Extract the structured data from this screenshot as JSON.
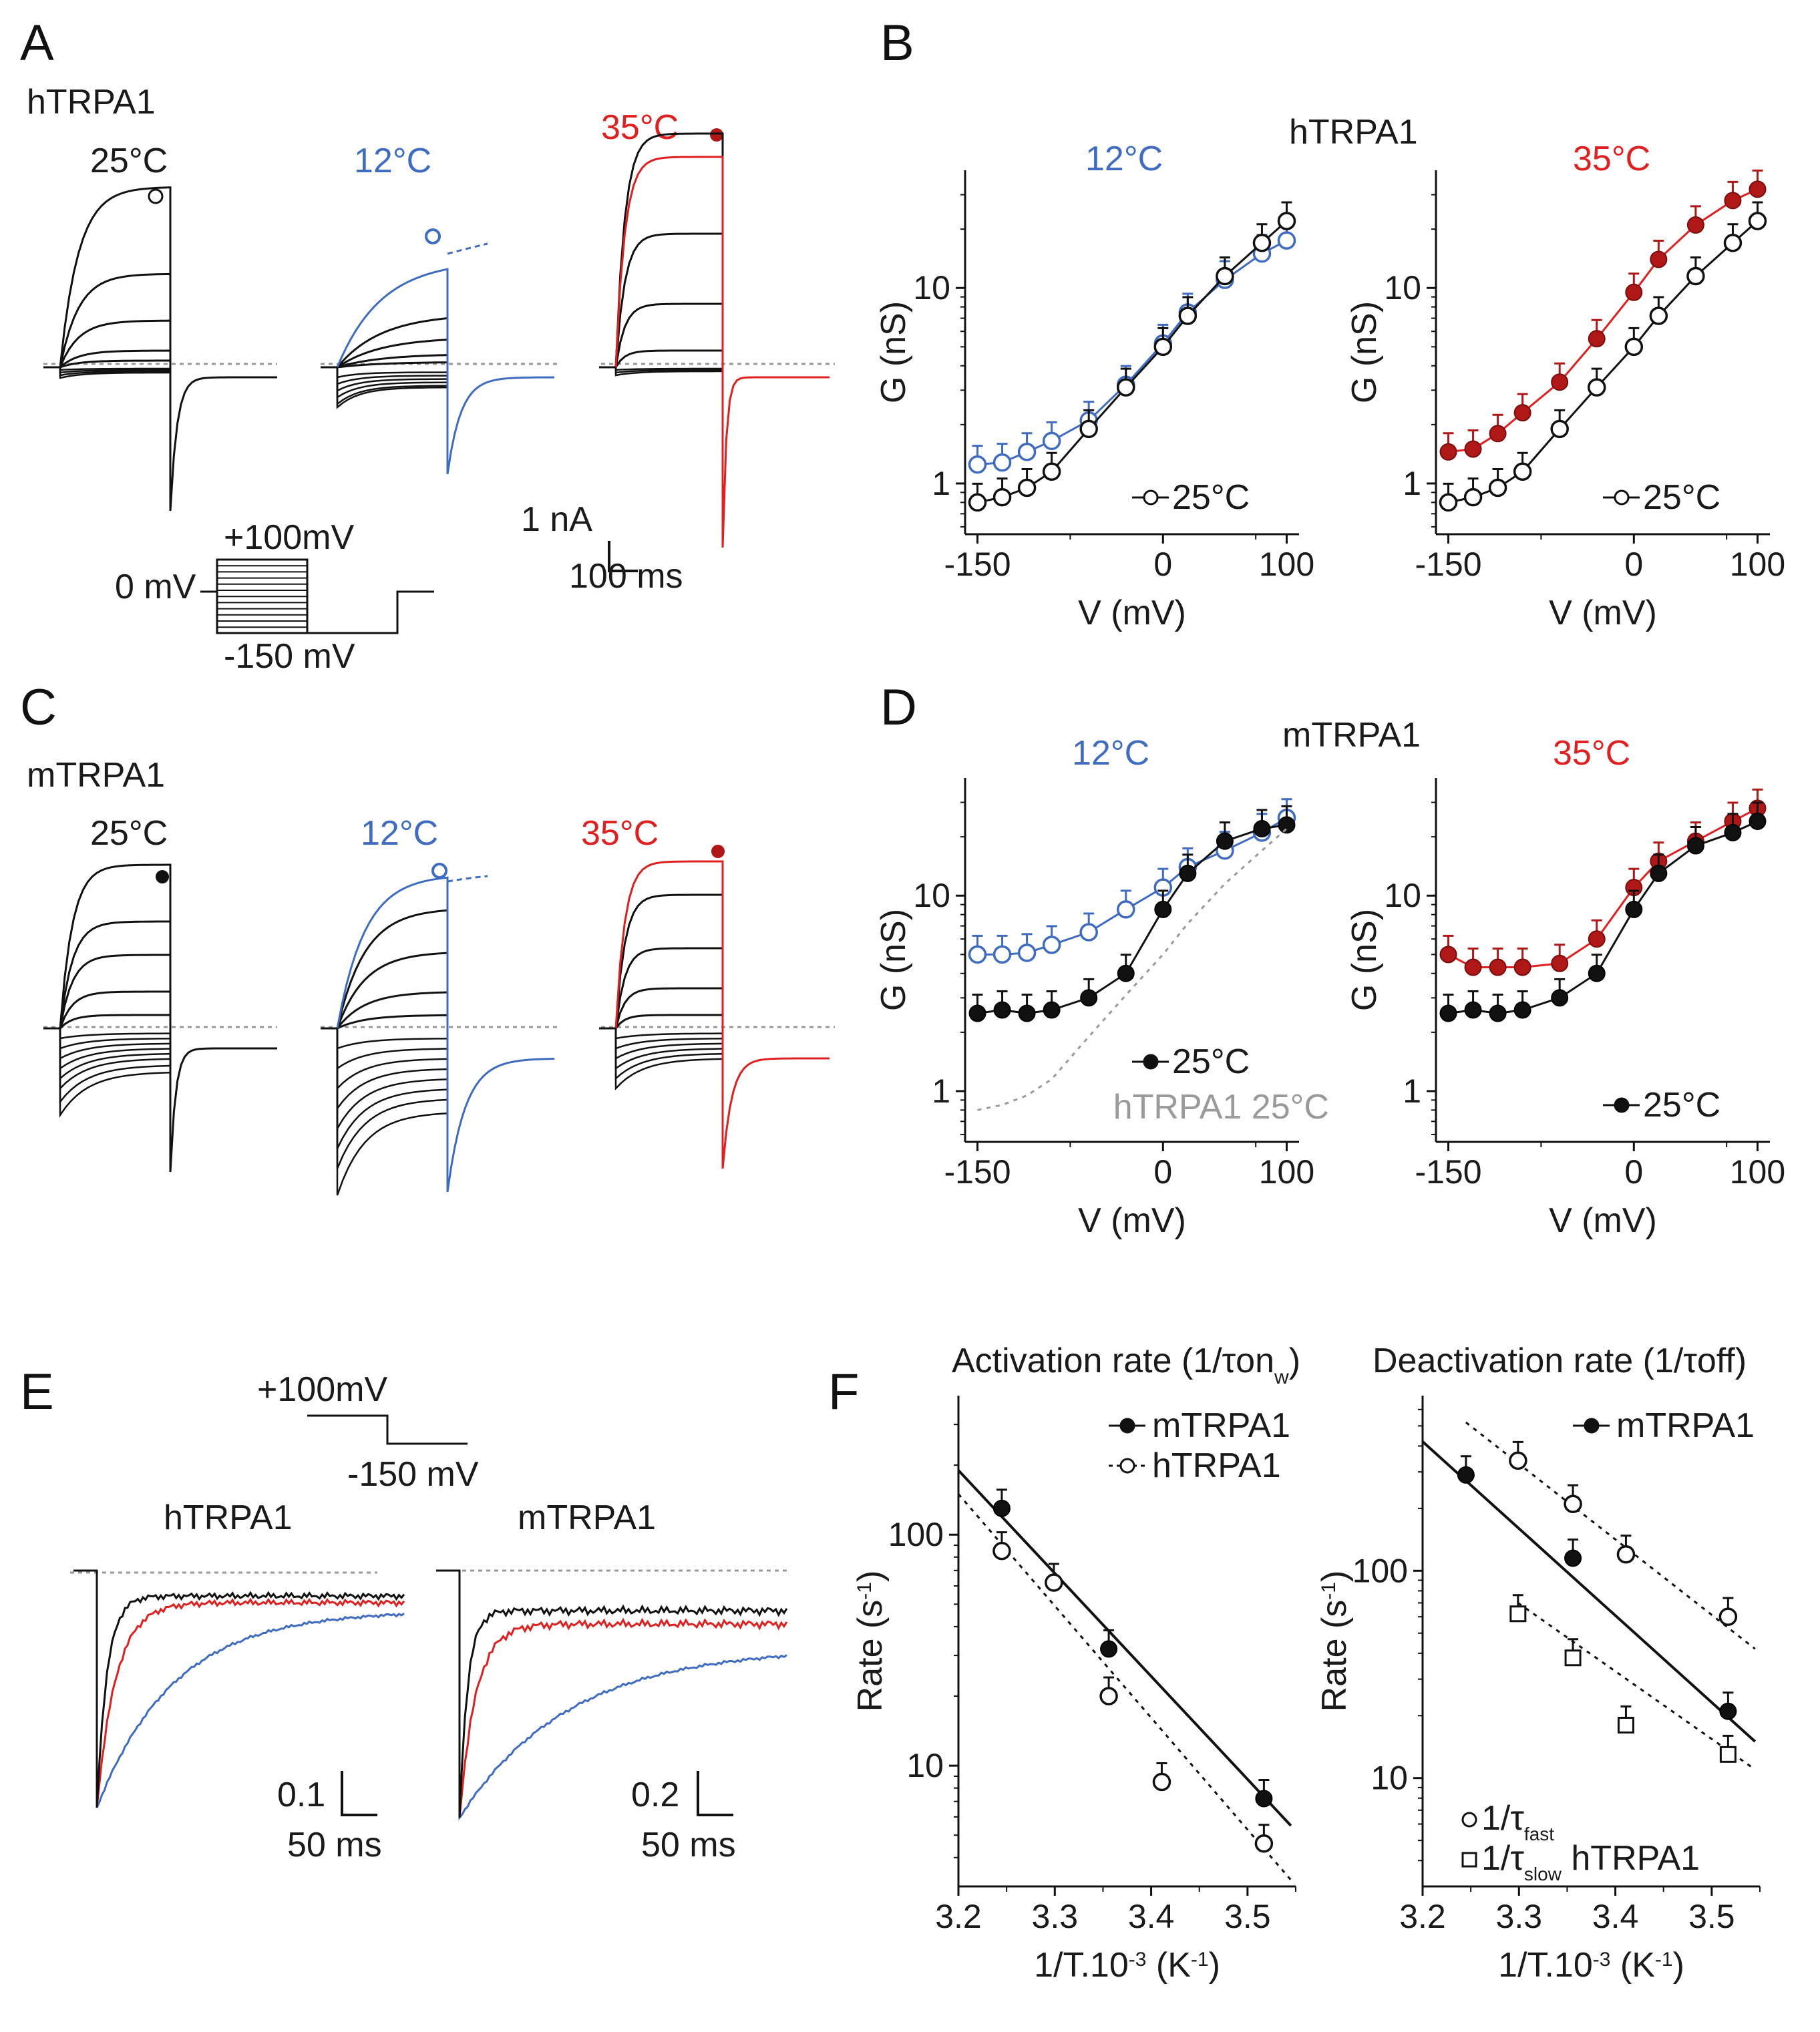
{
  "colors": {
    "black": "#111111",
    "blue": "#3f6cc0",
    "red": "#e02020",
    "darkred": "#b01818",
    "gray": "#9a9a9a",
    "lightgray": "#b8b8b8"
  },
  "panel_letters": [
    "A",
    "B",
    "C",
    "D",
    "E",
    "F"
  ],
  "A": {
    "species": "hTRPA1",
    "conditions": [
      {
        "temp": "25°C",
        "color": "black",
        "marker": "open"
      },
      {
        "temp": "12°C",
        "color": "blue",
        "marker": "open-blue"
      },
      {
        "temp": "35°C",
        "color": "red",
        "marker": "filled-red"
      }
    ],
    "protocol": {
      "top": "+100mV",
      "hold": "0 mV",
      "bottom": "-150 mV"
    },
    "scale": {
      "y": "1 nA",
      "x": "100 ms"
    }
  },
  "C": {
    "species": "mTRPA1",
    "conditions": [
      {
        "temp": "25°C",
        "color": "black",
        "marker": "filled"
      },
      {
        "temp": "12°C",
        "color": "blue",
        "marker": "open-blue"
      },
      {
        "temp": "35°C",
        "color": "red",
        "marker": "filled-red"
      }
    ]
  },
  "E": {
    "protocol": {
      "top": "+100mV",
      "bottom": "-150 mV"
    },
    "traces": [
      {
        "title": "hTRPA1",
        "scale_y": "0.1",
        "scale_x": "50 ms"
      },
      {
        "title": "mTRPA1",
        "scale_y": "0.2",
        "scale_x": "50 ms"
      }
    ]
  },
  "chart_data": [
    {
      "id": "B-left",
      "type": "line",
      "panel": "B",
      "header": "hTRPA1",
      "title": "12°C",
      "xlabel": "V (mV)",
      "ylabel": "G (nS)",
      "xlim": [
        -160,
        110
      ],
      "ylim": [
        0.55,
        40
      ],
      "yscale": "log",
      "xticks": [
        -150,
        0,
        100
      ],
      "xtick_labels": [
        "-150",
        "0",
        "100"
      ],
      "yticks": [
        1,
        10
      ],
      "ytick_labels": [
        "1",
        "10"
      ],
      "legend": "25°C",
      "series": [
        {
          "name": "12°C",
          "color": "blue",
          "marker": "open",
          "x": [
            -150,
            -130,
            -110,
            -90,
            -60,
            -30,
            0,
            20,
            50,
            80,
            100
          ],
          "y": [
            1.25,
            1.28,
            1.45,
            1.65,
            2.1,
            3.2,
            5.2,
            7.5,
            11,
            15,
            17.5
          ]
        },
        {
          "name": "25°C",
          "color": "black",
          "marker": "open",
          "x": [
            -150,
            -130,
            -110,
            -90,
            -60,
            -30,
            0,
            20,
            50,
            80,
            100
          ],
          "y": [
            0.8,
            0.85,
            0.95,
            1.15,
            1.9,
            3.1,
            5.0,
            7.2,
            11.5,
            17,
            22
          ]
        }
      ]
    },
    {
      "id": "B-right",
      "type": "line",
      "panel": "B",
      "title": "35°C",
      "xlabel": "V (mV)",
      "ylabel": "G (nS)",
      "xlim": [
        -160,
        110
      ],
      "ylim": [
        0.55,
        40
      ],
      "yscale": "log",
      "xticks": [
        -150,
        0,
        100
      ],
      "xtick_labels": [
        "-150",
        "0",
        "100"
      ],
      "yticks": [
        1,
        10
      ],
      "ytick_labels": [
        "1",
        "10"
      ],
      "legend": "25°C",
      "series": [
        {
          "name": "35°C",
          "color": "darkred",
          "marker": "filled",
          "x": [
            -150,
            -130,
            -110,
            -90,
            -60,
            -30,
            0,
            20,
            50,
            80,
            100
          ],
          "y": [
            1.45,
            1.5,
            1.8,
            2.3,
            3.3,
            5.5,
            9.5,
            14,
            21,
            28,
            32
          ]
        },
        {
          "name": "25°C",
          "color": "black",
          "marker": "open",
          "x": [
            -150,
            -130,
            -110,
            -90,
            -60,
            -30,
            0,
            20,
            50,
            80,
            100
          ],
          "y": [
            0.8,
            0.85,
            0.95,
            1.15,
            1.9,
            3.1,
            5.0,
            7.2,
            11.5,
            17,
            22
          ]
        }
      ]
    },
    {
      "id": "D-left",
      "type": "line",
      "panel": "D",
      "header": "mTRPA1",
      "title": "12°C",
      "xlabel": "V (mV)",
      "ylabel": "G (nS)",
      "xlim": [
        -160,
        110
      ],
      "ylim": [
        0.55,
        40
      ],
      "yscale": "log",
      "xticks": [
        -150,
        0,
        100
      ],
      "xtick_labels": [
        "-150",
        "0",
        "100"
      ],
      "yticks": [
        1,
        10
      ],
      "ytick_labels": [
        "1",
        "10"
      ],
      "legend": "25°C",
      "legend2": "hTRPA1 25°C",
      "series": [
        {
          "name": "12°C",
          "color": "blue",
          "marker": "open",
          "x": [
            -150,
            -130,
            -110,
            -90,
            -60,
            -30,
            0,
            20,
            50,
            80,
            100
          ],
          "y": [
            5.0,
            5.0,
            5.1,
            5.6,
            6.5,
            8.5,
            11,
            14,
            17,
            21,
            25
          ]
        },
        {
          "name": "25°C",
          "color": "black",
          "marker": "filled",
          "x": [
            -150,
            -130,
            -110,
            -90,
            -60,
            -30,
            0,
            20,
            50,
            80,
            100
          ],
          "y": [
            2.5,
            2.6,
            2.5,
            2.6,
            3.0,
            4.0,
            8.5,
            13,
            19,
            22,
            23
          ]
        },
        {
          "name": "hTRPA1 25°C",
          "color": "gray",
          "marker": "none",
          "x": [
            -150,
            -130,
            -110,
            -90,
            -60,
            -30,
            0,
            20,
            50,
            80,
            100
          ],
          "y": [
            0.8,
            0.85,
            0.95,
            1.15,
            1.9,
            3.1,
            5.0,
            7.2,
            11.5,
            17,
            22
          ]
        }
      ]
    },
    {
      "id": "D-right",
      "type": "line",
      "panel": "D",
      "title": "35°C",
      "xlabel": "V (mV)",
      "ylabel": "G (nS)",
      "xlim": [
        -160,
        110
      ],
      "ylim": [
        0.55,
        40
      ],
      "yscale": "log",
      "xticks": [
        -150,
        0,
        100
      ],
      "xtick_labels": [
        "-150",
        "0",
        "100"
      ],
      "yticks": [
        1,
        10
      ],
      "ytick_labels": [
        "1",
        "10"
      ],
      "legend": "25°C",
      "series": [
        {
          "name": "35°C",
          "color": "darkred",
          "marker": "filled",
          "x": [
            -150,
            -130,
            -110,
            -90,
            -60,
            -30,
            0,
            20,
            50,
            80,
            100
          ],
          "y": [
            5.0,
            4.3,
            4.3,
            4.3,
            4.5,
            6.0,
            11,
            15,
            19,
            24,
            28
          ]
        },
        {
          "name": "25°C",
          "color": "black",
          "marker": "filled",
          "x": [
            -150,
            -130,
            -110,
            -90,
            -60,
            -30,
            0,
            20,
            50,
            80,
            100
          ],
          "y": [
            2.5,
            2.6,
            2.5,
            2.6,
            3.0,
            4.0,
            8.5,
            13,
            18,
            21,
            24
          ]
        }
      ]
    },
    {
      "id": "F-left",
      "type": "scatter",
      "panel": "F",
      "title": "Activation rate (1/τon",
      "title_sub": "w",
      "title_end": ")",
      "xlabel": "1/T.10",
      "xlabel_sup": "-3",
      "xlabel_end": " (K",
      "xlabel_sup2": "-1",
      "xlabel_close": ")",
      "ylabel": "Rate (s",
      "ylabel_sup": "-1",
      "ylabel_end": ")",
      "xlim": [
        3.2,
        3.55
      ],
      "ylim": [
        3,
        400
      ],
      "yscale": "log",
      "xticks": [
        3.2,
        3.3,
        3.4,
        3.5
      ],
      "xtick_labels": [
        "3.2",
        "3.3",
        "3.4",
        "3.5"
      ],
      "yticks": [
        10,
        100
      ],
      "ytick_labels": [
        "10",
        "100"
      ],
      "legend": [
        "mTRPA1",
        "hTRPA1"
      ],
      "series": [
        {
          "name": "mTRPA1",
          "color": "black",
          "marker": "filled",
          "x": [
            3.245,
            3.356,
            3.517
          ],
          "y": [
            130,
            32,
            7.2
          ],
          "fit": {
            "x": [
              3.2,
              3.545
            ],
            "y": [
              190,
              5.5
            ]
          }
        },
        {
          "name": "hTRPA1",
          "color": "black",
          "marker": "open",
          "x": [
            3.245,
            3.299,
            3.356,
            3.411,
            3.517
          ],
          "y": [
            85,
            62,
            20,
            8.5,
            4.6
          ],
          "fit": {
            "x": [
              3.2,
              3.545
            ],
            "y": [
              150,
              3.2
            ]
          }
        }
      ]
    },
    {
      "id": "F-right",
      "type": "scatter",
      "panel": "F",
      "title": "Deactivation rate (1/τoff)",
      "xlabel": "1/T.10",
      "xlabel_sup": "-3",
      "xlabel_end": " (K",
      "xlabel_sup2": "-1",
      "xlabel_close": ")",
      "ylabel": "Rate (s",
      "ylabel_sup": "-1",
      "ylabel_end": ")",
      "xlim": [
        3.2,
        3.55
      ],
      "ylim": [
        3,
        700
      ],
      "yscale": "log",
      "xticks": [
        3.2,
        3.3,
        3.4,
        3.5
      ],
      "xtick_labels": [
        "3.2",
        "3.3",
        "3.4",
        "3.5"
      ],
      "yticks": [
        10,
        100
      ],
      "ytick_labels": [
        "10",
        "100"
      ],
      "legend": [
        "mTRPA1"
      ],
      "legend_bottom": [
        "1/τ",
        "fast",
        "1/τ",
        "slow",
        "hTRPA1"
      ],
      "series": [
        {
          "name": "mTRPA1",
          "color": "black",
          "marker": "filled",
          "x": [
            3.245,
            3.356,
            3.517
          ],
          "y": [
            290,
            115,
            21
          ],
          "fit": {
            "x": [
              3.2,
              3.545
            ],
            "y": [
              420,
              15
            ]
          }
        },
        {
          "name": "1/τfast",
          "color": "black",
          "marker": "open",
          "x": [
            3.299,
            3.356,
            3.411,
            3.517
          ],
          "y": [
            340,
            210,
            120,
            60
          ],
          "fit": {
            "x": [
              3.245,
              3.545
            ],
            "y": [
              520,
              42
            ]
          }
        },
        {
          "name": "1/τslow",
          "color": "black",
          "marker": "open-square",
          "x": [
            3.299,
            3.356,
            3.411,
            3.517
          ],
          "y": [
            62,
            38,
            18,
            13
          ],
          "fit": {
            "x": [
              3.299,
              3.545
            ],
            "y": [
              70,
              11
            ]
          }
        }
      ]
    }
  ]
}
